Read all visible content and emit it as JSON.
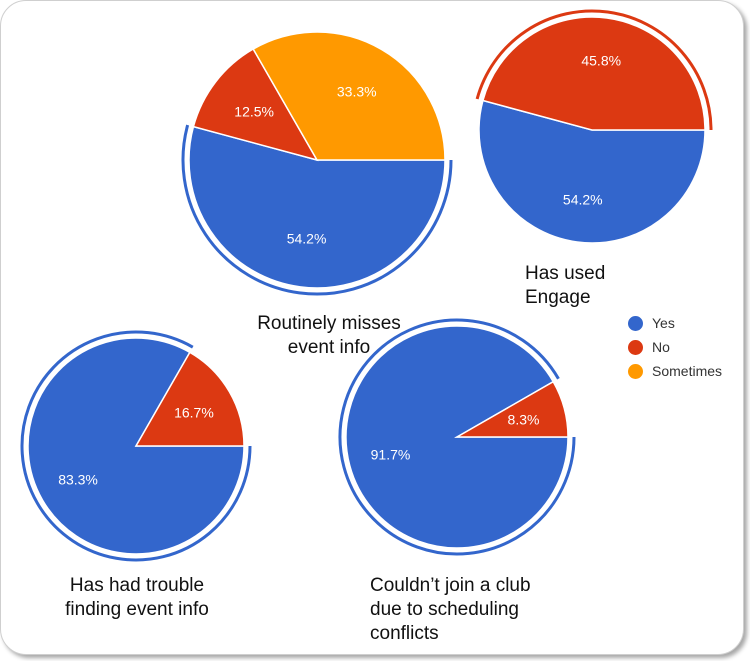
{
  "legend": [
    {
      "name": "Yes",
      "color": "#3366cc"
    },
    {
      "name": "No",
      "color": "#dc3912"
    },
    {
      "name": "Sometimes",
      "color": "#ff9900"
    }
  ],
  "chart_data": [
    {
      "type": "pie",
      "title": "Routinely misses event info",
      "categories": [
        "Yes",
        "No",
        "Sometimes"
      ],
      "values": [
        54.2,
        12.5,
        33.3
      ],
      "labels": [
        "54.2%",
        "12.5%",
        "33.3%"
      ],
      "highlight": "Yes"
    },
    {
      "type": "pie",
      "title": "Has used Engage",
      "categories": [
        "Yes",
        "No"
      ],
      "values": [
        54.2,
        45.8
      ],
      "labels": [
        "54.2%",
        "45.8%"
      ],
      "highlight": "No"
    },
    {
      "type": "pie",
      "title": "Has had trouble finding event info",
      "categories": [
        "Yes",
        "No"
      ],
      "values": [
        83.3,
        16.7
      ],
      "labels": [
        "83.3%",
        "16.7%"
      ],
      "highlight": "Yes"
    },
    {
      "type": "pie",
      "title": "Couldn’t join a club due to scheduling conflicts",
      "categories": [
        "Yes",
        "No"
      ],
      "values": [
        91.7,
        8.3
      ],
      "labels": [
        "91.7%",
        "8.3%"
      ],
      "highlight": "Yes"
    }
  ]
}
